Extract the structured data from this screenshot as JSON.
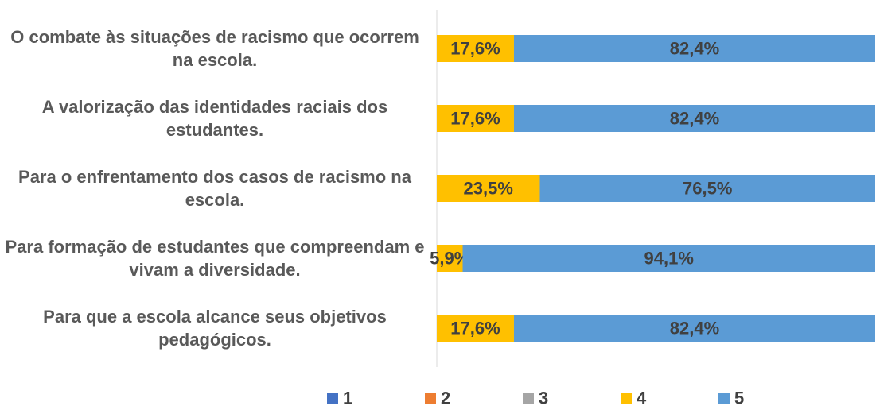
{
  "chart_data": {
    "type": "stacked-bar-horizontal",
    "categories": [
      "O combate às situações de racismo que ocorrem na escola.",
      "A valorização das identidades raciais dos estudantes.",
      "Para o enfrentamento dos casos de racismo na escola.",
      "Para formação de estudantes que compreendam e vivam a diversidade.",
      "Para que a escola alcance seus objetivos pedagógicos."
    ],
    "series": [
      {
        "name": "1",
        "color": "#4472c4",
        "values": [
          0,
          0,
          0,
          0,
          0
        ]
      },
      {
        "name": "2",
        "color": "#ed7d31",
        "values": [
          0,
          0,
          0,
          0,
          0
        ]
      },
      {
        "name": "3",
        "color": "#a5a5a5",
        "values": [
          0,
          0,
          0,
          0,
          0
        ]
      },
      {
        "name": "4",
        "color": "#ffc000",
        "values": [
          17.6,
          17.6,
          23.5,
          5.9,
          17.6
        ],
        "value_labels": [
          "17,6%",
          "17,6%",
          "23,5%",
          "5,9%",
          "17,6%"
        ]
      },
      {
        "name": "5",
        "color": "#5b9bd5",
        "values": [
          82.4,
          82.4,
          76.5,
          94.1,
          82.4
        ],
        "value_labels": [
          "82,4%",
          "82,4%",
          "76,5%",
          "94,1%",
          "82,4%"
        ]
      }
    ],
    "xlim": [
      0,
      100
    ],
    "legend": "bottom"
  }
}
